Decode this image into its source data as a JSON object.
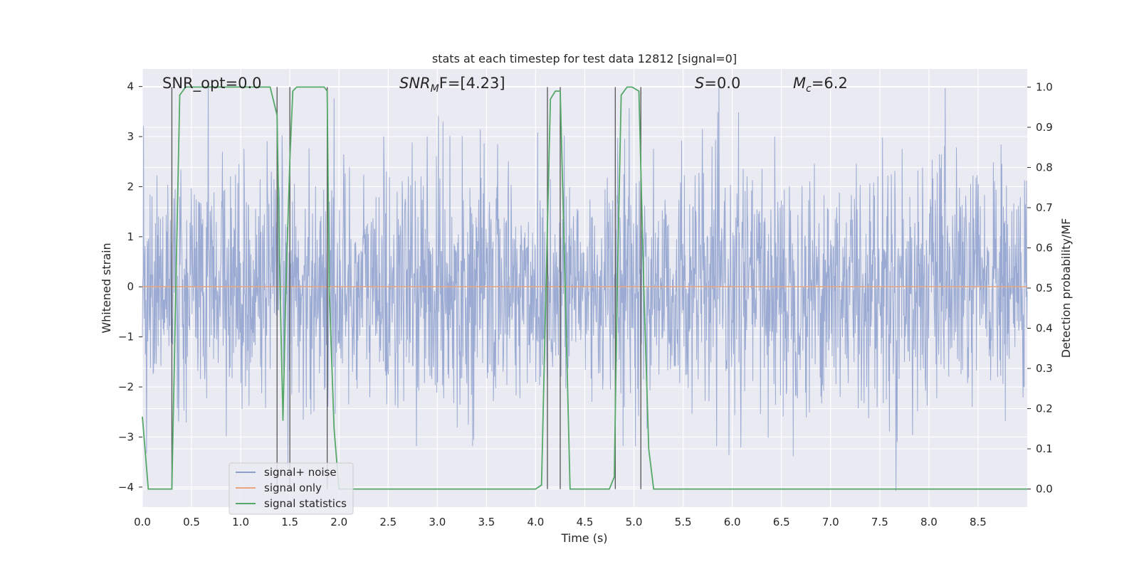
{
  "chart_data": {
    "type": "line",
    "title": "stats at each timestep for test data 12812 [signal=0]",
    "xlabel": "Time (s)",
    "ylabel": "Whitened strain",
    "y2label": "Detection probability/MF",
    "xlim": [
      0.0,
      9.0
    ],
    "ylim": [
      -4.4,
      4.35
    ],
    "y2lim": [
      -0.045,
      1.045
    ],
    "x_ticks": [
      "0.0",
      "0.5",
      "1.0",
      "1.5",
      "2.0",
      "2.5",
      "3.0",
      "3.5",
      "4.0",
      "4.5",
      "5.0",
      "5.5",
      "6.0",
      "6.5",
      "7.0",
      "7.5",
      "8.0",
      "8.5"
    ],
    "y_ticks": [
      "4",
      "3",
      "2",
      "1",
      "0",
      "−1",
      "−2",
      "−3",
      "−4"
    ],
    "y2_ticks": [
      "1.0",
      "0.9",
      "0.8",
      "0.7",
      "0.6",
      "0.5",
      "0.4",
      "0.3",
      "0.2",
      "0.1",
      "0.0"
    ],
    "grid": true,
    "legend_position": "lower-left",
    "annotations": {
      "snr_opt": "SNR_opt=0.0",
      "snr_mf_main": "SNR",
      "snr_mf_sub": "M",
      "snr_mf_rest": "F=[4.23]",
      "s_main": "S",
      "s_rest": "=0.0",
      "mc_main": "M",
      "mc_sub": "c",
      "mc_rest": "=6.2"
    },
    "series": [
      {
        "name": "signal+ noise",
        "color": "#8c9fcc",
        "kind": "noise",
        "envelope_std": 1.2,
        "range": [
          -4.3,
          4.1
        ]
      },
      {
        "name": "signal only",
        "color": "#e9a57f",
        "kind": "flat",
        "value": 0.0
      },
      {
        "name": "signal statistics",
        "color": "#55a868",
        "axis": "right",
        "x": [
          0.0,
          0.06,
          0.15,
          0.3,
          0.34,
          0.38,
          0.44,
          0.5,
          1.0,
          1.3,
          1.37,
          1.4,
          1.43,
          1.46,
          1.5,
          1.53,
          1.57,
          1.6,
          1.85,
          1.88,
          1.9,
          1.95,
          2.0,
          2.05,
          2.5,
          3.0,
          3.5,
          4.0,
          4.06,
          4.1,
          4.15,
          4.2,
          4.25,
          4.3,
          4.35,
          4.38,
          4.45,
          4.75,
          4.8,
          4.83,
          4.87,
          4.93,
          4.98,
          5.05,
          5.1,
          5.15,
          5.2,
          5.25,
          5.5,
          6.0,
          7.0,
          8.0,
          9.0
        ],
        "y": [
          0.18,
          0.0,
          0.0,
          0.0,
          0.5,
          0.98,
          1.0,
          1.0,
          1.0,
          1.0,
          0.93,
          0.5,
          0.17,
          0.5,
          0.82,
          0.99,
          1.0,
          1.0,
          1.0,
          0.99,
          0.5,
          0.15,
          0.0,
          0.0,
          0.0,
          0.0,
          0.0,
          0.0,
          0.01,
          0.45,
          0.97,
          0.99,
          0.99,
          0.5,
          0.0,
          0.0,
          0.0,
          0.0,
          0.03,
          0.5,
          0.98,
          1.0,
          1.0,
          0.99,
          0.5,
          0.1,
          0.0,
          0.0,
          0.0,
          0.0,
          0.0,
          0.0,
          0.0
        ]
      }
    ],
    "vertical_lines": [
      0.3,
      1.37,
      1.5,
      1.88,
      4.12,
      4.25,
      4.81,
      5.07
    ],
    "vertical_line_color": "#555555",
    "horizontal_gridlines_right": [
      0.1,
      0.2,
      0.3,
      0.4,
      0.6,
      0.7,
      0.8,
      0.9,
      1.0
    ]
  }
}
